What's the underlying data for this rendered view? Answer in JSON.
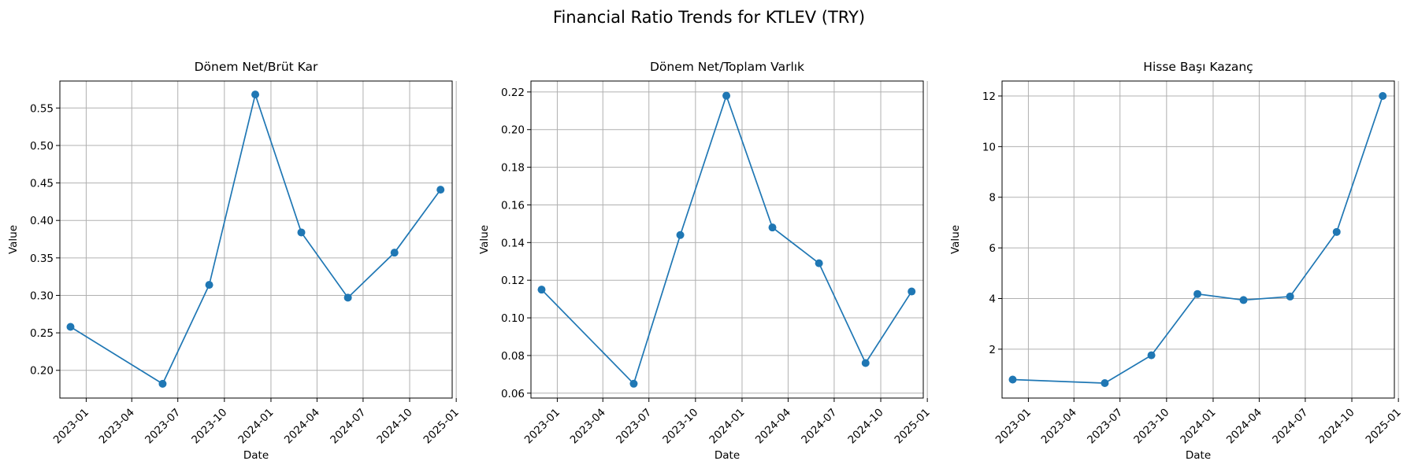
{
  "figure": {
    "title": "Financial Ratio Trends for KTLEV (TRY)"
  },
  "style": {
    "line_color": "#1f77b4",
    "grid_color": "#b0b0b0",
    "grid": true
  },
  "chart_data": [
    {
      "type": "line",
      "title": "Dönem Net/Brüt Kar",
      "xlabel": "Date",
      "ylabel": "Value",
      "x_ticks": [
        "2023-01",
        "2023-04",
        "2023-07",
        "2023-10",
        "2024-01",
        "2024-04",
        "2024-07",
        "2024-10",
        "2025-01"
      ],
      "y_ticks": [
        "0.20",
        "0.25",
        "0.30",
        "0.35",
        "0.40",
        "0.45",
        "0.50",
        "0.55"
      ],
      "xlim": [
        "2022-11-10",
        "2024-12-24"
      ],
      "ylim": [
        0.163,
        0.586
      ],
      "series": [
        {
          "x": [
            "2022-12-01",
            "2023-06-01",
            "2023-09-01",
            "2023-12-01",
            "2024-03-01",
            "2024-06-01",
            "2024-09-01",
            "2024-12-01"
          ],
          "values": [
            0.258,
            0.182,
            0.314,
            0.568,
            0.384,
            0.297,
            0.357,
            0.441
          ]
        }
      ]
    },
    {
      "type": "line",
      "title": "Dönem Net/Toplam Varlık",
      "xlabel": "Date",
      "ylabel": "Value",
      "x_ticks": [
        "2023-01",
        "2023-04",
        "2023-07",
        "2023-10",
        "2024-01",
        "2024-04",
        "2024-07",
        "2024-10",
        "2025-01"
      ],
      "y_ticks": [
        "0.06",
        "0.08",
        "0.10",
        "0.12",
        "0.14",
        "0.16",
        "0.18",
        "0.20",
        "0.22"
      ],
      "xlim": [
        "2022-11-10",
        "2024-12-24"
      ],
      "ylim": [
        0.0574,
        0.2258
      ],
      "series": [
        {
          "x": [
            "2022-12-01",
            "2023-06-01",
            "2023-09-01",
            "2023-12-01",
            "2024-03-01",
            "2024-06-01",
            "2024-09-01",
            "2024-12-01"
          ],
          "values": [
            0.115,
            0.065,
            0.144,
            0.218,
            0.148,
            0.129,
            0.076,
            0.114
          ]
        }
      ]
    },
    {
      "type": "line",
      "title": "Hisse Başı Kazanç",
      "xlabel": "Date",
      "ylabel": "Value",
      "x_ticks": [
        "2023-01",
        "2023-04",
        "2023-07",
        "2023-10",
        "2024-01",
        "2024-04",
        "2024-07",
        "2024-10",
        "2025-01"
      ],
      "y_ticks": [
        "2",
        "4",
        "6",
        "8",
        "10",
        "12"
      ],
      "xlim": [
        "2022-11-10",
        "2024-12-24"
      ],
      "ylim": [
        0.07,
        12.59
      ],
      "series": [
        {
          "x": [
            "2022-12-01",
            "2023-06-01",
            "2023-09-01",
            "2023-12-01",
            "2024-03-01",
            "2024-06-01",
            "2024-09-01",
            "2024-12-01"
          ],
          "values": [
            0.8,
            0.66,
            1.76,
            4.18,
            3.94,
            4.08,
            6.63,
            12.0
          ]
        }
      ]
    }
  ]
}
